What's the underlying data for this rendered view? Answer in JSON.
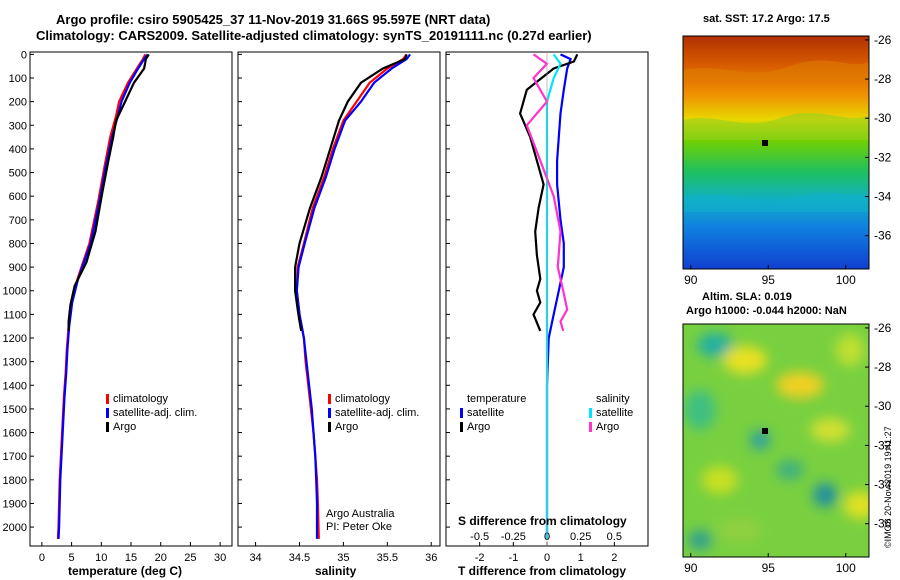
{
  "title_line1": "Argo profile: csiro 5905425_37 11-Nov-2019 31.66S 95.597E (NRT data)",
  "title_line2": "Climatology: CARS2009. Satellite-adjusted climatology: synTS_20191111.nc (0.27d earlier)",
  "colors": {
    "climatology": "#ff0000",
    "satellite": "#0000ff",
    "argo": "#000000",
    "s_satellite": "#00e5ff",
    "s_argo": "#ff33cc"
  },
  "chart_data": [
    {
      "type": "line",
      "id": "temperature",
      "xlabel": "temperature (deg C)",
      "ylabel": "",
      "xlim": [
        -2,
        32
      ],
      "ylim": [
        2080,
        -10
      ],
      "xticks": [
        "0",
        "5",
        "10",
        "15",
        "20",
        "25",
        "30"
      ],
      "yticks": [
        "0",
        "100",
        "200",
        "300",
        "400",
        "500",
        "600",
        "700",
        "800",
        "900",
        "1000",
        "1100",
        "1200",
        "1300",
        "1400",
        "1500",
        "1600",
        "1700",
        "1800",
        "1900",
        "2000"
      ],
      "legend": [
        "climatology",
        "satellite-adj. clim.",
        "Argo"
      ],
      "series": [
        {
          "name": "climatology",
          "x": [
            17.4,
            17.0,
            16.0,
            14.5,
            13.0,
            12.5,
            11.5,
            10.5,
            9.5,
            8.0,
            6.0,
            5.0,
            4.5,
            4.2,
            4.0,
            3.7,
            3.4,
            3.2,
            3.0,
            2.9,
            2.8,
            2.7
          ],
          "y": [
            0,
            20,
            60,
            120,
            200,
            260,
            350,
            480,
            620,
            800,
            950,
            1050,
            1150,
            1250,
            1350,
            1450,
            1600,
            1700,
            1800,
            1900,
            2000,
            2050
          ]
        },
        {
          "name": "satellite-adj. clim.",
          "x": [
            17.8,
            17.2,
            16.2,
            14.8,
            13.4,
            12.8,
            11.8,
            10.7,
            9.7,
            8.2,
            6.1,
            5.1,
            4.6,
            4.3,
            4.1,
            3.8,
            3.5,
            3.3,
            3.1,
            3.0,
            2.9,
            2.8
          ],
          "y": [
            0,
            20,
            60,
            120,
            200,
            260,
            350,
            480,
            620,
            800,
            950,
            1050,
            1150,
            1250,
            1350,
            1450,
            1600,
            1700,
            1800,
            1900,
            2000,
            2050
          ]
        },
        {
          "name": "Argo",
          "x": [
            18.0,
            17.5,
            17.2,
            15.5,
            14.0,
            12.5,
            12.0,
            11.2,
            10.2,
            9.0,
            7.5,
            5.5,
            4.8,
            4.5,
            4.5
          ],
          "y": [
            0,
            20,
            60,
            120,
            200,
            280,
            350,
            450,
            580,
            750,
            880,
            980,
            1060,
            1130,
            1170
          ]
        }
      ]
    },
    {
      "type": "line",
      "id": "salinity",
      "xlabel": "salinity",
      "ylabel": "",
      "xlim": [
        33.8,
        36.1
      ],
      "ylim": [
        2080,
        -10
      ],
      "xticks": [
        "34",
        "34.5",
        "35",
        "35.5",
        "36"
      ],
      "legend": [
        "climatology",
        "satellite-adj. clim.",
        "Argo"
      ],
      "credit": [
        "Argo Australia",
        "PI: Peter Oke"
      ],
      "series": [
        {
          "name": "climatology",
          "x": [
            35.72,
            35.68,
            35.5,
            35.3,
            35.15,
            35.0,
            34.88,
            34.78,
            34.65,
            34.55,
            34.48,
            34.47,
            34.5,
            34.55,
            34.57,
            34.6,
            34.63,
            34.66,
            34.68,
            34.7,
            34.71,
            34.72
          ],
          "y": [
            0,
            20,
            60,
            120,
            200,
            280,
            400,
            520,
            650,
            800,
            900,
            1000,
            1100,
            1200,
            1300,
            1400,
            1500,
            1600,
            1700,
            1800,
            1900,
            2050
          ]
        },
        {
          "name": "satellite-adj. clim.",
          "x": [
            35.76,
            35.72,
            35.55,
            35.35,
            35.2,
            35.02,
            34.9,
            34.8,
            34.67,
            34.56,
            34.49,
            34.47,
            34.5,
            34.55,
            34.58,
            34.61,
            34.64,
            34.66,
            34.68,
            34.69,
            34.7,
            34.7
          ],
          "y": [
            0,
            20,
            60,
            120,
            200,
            280,
            400,
            520,
            650,
            800,
            900,
            1000,
            1100,
            1200,
            1300,
            1400,
            1500,
            1600,
            1700,
            1800,
            1900,
            2050
          ]
        },
        {
          "name": "Argo",
          "x": [
            35.72,
            35.7,
            35.45,
            35.2,
            35.05,
            34.95,
            34.85,
            34.75,
            34.62,
            34.5,
            34.45,
            34.45,
            34.48,
            34.5,
            34.52
          ],
          "y": [
            0,
            20,
            60,
            120,
            200,
            280,
            400,
            520,
            650,
            800,
            900,
            1000,
            1080,
            1130,
            1170
          ]
        }
      ]
    },
    {
      "type": "line",
      "id": "difference",
      "xlabel": "T difference from climatology",
      "xlabel2": "S difference from climatology",
      "xlim": [
        -3,
        3
      ],
      "ylim": [
        2080,
        -10
      ],
      "xticks": [
        "-2",
        "-1",
        "0",
        "1",
        "2"
      ],
      "s_xticks": [
        "-0.5",
        "-0.25",
        "0",
        "0.25",
        "0.5"
      ],
      "legend_t_title": "temperature",
      "legend_s_title": "salinity",
      "legend_t": [
        "satellite",
        "Argo"
      ],
      "legend_s": [
        "satellite",
        "Argo"
      ],
      "series": [
        {
          "name": "T satellite",
          "x": [
            0.4,
            0.7,
            0.6,
            0.5,
            0.4,
            0.35,
            0.3,
            0.3,
            0.4,
            0.5,
            0.5,
            0.35,
            0.2,
            0.05,
            0.0,
            0.0,
            0.0,
            0.0,
            0.0
          ],
          "y": [
            0,
            20,
            60,
            150,
            250,
            350,
            450,
            550,
            700,
            800,
            900,
            1000,
            1100,
            1200,
            1400,
            1600,
            1800,
            1950,
            2050
          ]
        },
        {
          "name": "T Argo",
          "x": [
            0.9,
            0.8,
            0.2,
            -0.6,
            -0.8,
            -0.5,
            -0.3,
            -0.1,
            -0.25,
            -0.35,
            -0.3,
            -0.2,
            -0.3,
            -0.2,
            -0.4,
            -0.2
          ],
          "y": [
            0,
            30,
            60,
            150,
            250,
            350,
            450,
            550,
            650,
            750,
            850,
            950,
            1000,
            1050,
            1100,
            1170
          ]
        },
        {
          "name": "S satellite",
          "x": [
            0.05,
            0.1,
            0.05,
            0.0,
            0.0,
            0.0,
            0.0,
            0.0,
            0.0,
            0.0,
            0.0,
            0.0,
            0.0,
            0.0,
            0.0
          ],
          "y": [
            0,
            40,
            100,
            200,
            300,
            450,
            600,
            750,
            900,
            1100,
            1300,
            1500,
            1700,
            1900,
            2050
          ]
        },
        {
          "name": "S Argo",
          "x": [
            -0.1,
            0.0,
            -0.1,
            0.0,
            -0.15,
            -0.05,
            0.05,
            0.1,
            0.08,
            0.12,
            0.15,
            0.1,
            0.12
          ],
          "y": [
            0,
            40,
            100,
            200,
            300,
            450,
            600,
            750,
            900,
            1000,
            1080,
            1130,
            1170
          ]
        }
      ]
    },
    {
      "type": "heatmap",
      "id": "sst_map",
      "title": "sat. SST: 17.2 Argo: 17.5",
      "xticks": [
        "90",
        "95",
        "100"
      ],
      "yticks": [
        "-26",
        "-28",
        "-30",
        "-32",
        "-34",
        "-36"
      ],
      "xlim": [
        89.5,
        101.5
      ],
      "ylim": [
        -37.7,
        -25.8
      ]
    },
    {
      "type": "heatmap",
      "id": "sla_map",
      "title": "Altim. SLA: 0.019",
      "subtitle": "Argo h1000: -0.044 h2000: NaN",
      "xticks": [
        "90",
        "95",
        "100"
      ],
      "yticks": [
        "-26",
        "-28",
        "-30",
        "-32",
        "-34",
        "-36"
      ],
      "xlim": [
        89.5,
        101.5
      ],
      "ylim": [
        -37.7,
        -25.8
      ]
    }
  ],
  "timestamp": "©IMOS 20-Nov-2019 19:41:27"
}
